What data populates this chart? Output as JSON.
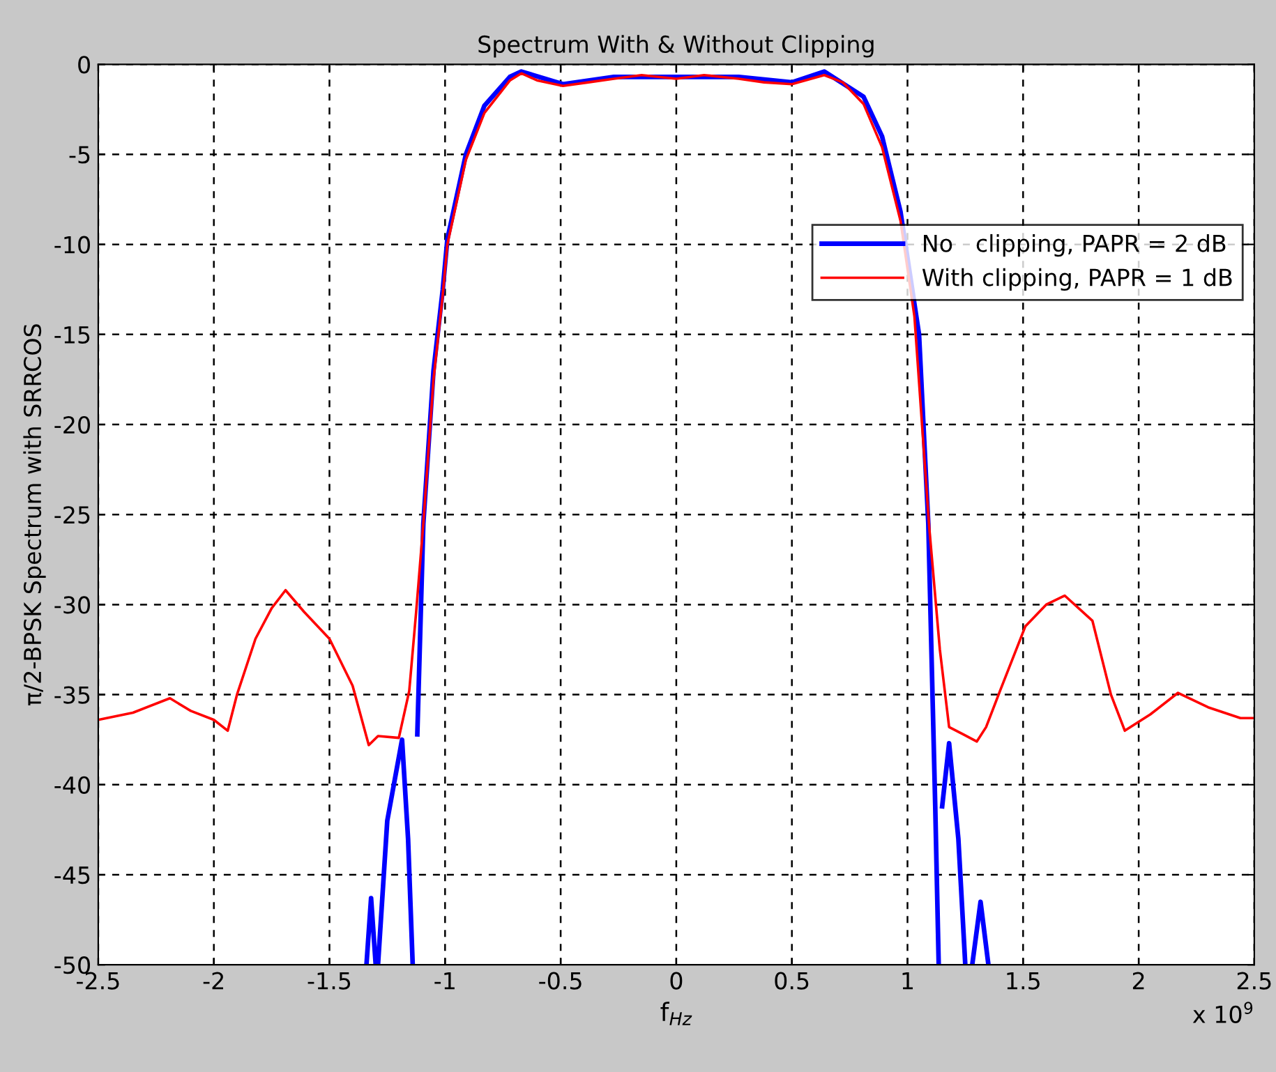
{
  "chart_data": {
    "type": "line",
    "title": "Spectrum With & Without Clipping",
    "xlabel": "f$_{Hz}$",
    "ylabel": "π/2-BPSK Spectrum with SRRCOS",
    "annotations": [
      "x 10$^{9}$"
    ],
    "xlim": [
      -2.5,
      2.5
    ],
    "xticks": [
      -2.5,
      -2,
      -1.5,
      -1,
      -0.5,
      0,
      0.5,
      1,
      1.5,
      2,
      2.5
    ],
    "ylim": [
      -50,
      0
    ],
    "yticks": [
      -50,
      -45,
      -40,
      -35,
      -30,
      -25,
      -20,
      -15,
      -10,
      -5,
      0
    ],
    "grid": true,
    "legend": "right",
    "line_style": "solid",
    "series": [
      {
        "name": "No   clipping, PAPR = 2 dB",
        "color": "#0000ff",
        "x": [
          -1.34,
          -1.32,
          -1.3,
          null,
          -1.29,
          -1.25,
          -1.186,
          -1.16,
          -1.14,
          null,
          -1.12,
          -1.094,
          -1.05,
          -1.01,
          -0.99,
          -0.91,
          -0.83,
          -0.72,
          -0.67,
          -0.49,
          -0.27,
          0.0,
          0.27,
          0.5,
          0.64,
          0.81,
          0.89,
          0.97,
          1.05,
          1.09,
          1.12,
          1.135,
          null,
          1.15,
          1.18,
          1.22,
          1.25,
          null,
          1.28,
          1.316,
          1.35
        ],
        "values": [
          -50,
          -46.3,
          -50,
          null,
          -50,
          -42,
          -37.5,
          -43,
          -50,
          null,
          -37.2,
          -25.5,
          -17,
          -12.5,
          -9.7,
          -5,
          -2.3,
          -0.7,
          -0.4,
          -1.1,
          -0.7,
          -0.7,
          -0.7,
          -1.0,
          -0.4,
          -1.8,
          -4.0,
          -8.2,
          -15,
          -25.5,
          -41.2,
          -50,
          null,
          -41.2,
          -37.7,
          -43,
          -50,
          null,
          -50,
          -46.5,
          -50
        ]
      },
      {
        "name": "With clipping, PAPR = 1 dB",
        "color": "#ff0000",
        "x": [
          -2.5,
          -2.35,
          -2.19,
          -2.1,
          -2.0,
          -1.94,
          -1.9,
          -1.82,
          -1.75,
          -1.69,
          -1.61,
          -1.5,
          -1.4,
          -1.33,
          -1.29,
          -1.2,
          -1.155,
          -1.125,
          -1.094,
          -1.05,
          -1.01,
          -0.99,
          -0.91,
          -0.83,
          -0.72,
          -0.67,
          -0.6,
          -0.49,
          -0.38,
          -0.27,
          -0.15,
          0.0,
          0.12,
          0.27,
          0.38,
          0.5,
          0.64,
          0.72,
          0.81,
          0.89,
          0.97,
          1.03,
          1.094,
          1.14,
          1.18,
          1.24,
          1.3,
          1.34,
          1.4,
          1.51,
          1.6,
          1.68,
          1.8,
          1.88,
          1.94,
          2.05,
          2.17,
          2.3,
          2.44,
          2.5
        ],
        "values": [
          -36.4,
          -36.0,
          -35.2,
          -35.9,
          -36.4,
          -37,
          -35,
          -31.9,
          -30.2,
          -29.2,
          -30.4,
          -31.9,
          -34.5,
          -37.8,
          -37.3,
          -37.4,
          -34.8,
          -30.4,
          -25.5,
          -17.5,
          -12.8,
          -10,
          -5.3,
          -2.7,
          -0.9,
          -0.5,
          -0.9,
          -1.2,
          -1.0,
          -0.8,
          -0.6,
          -0.8,
          -0.6,
          -0.8,
          -1.0,
          -1.1,
          -0.6,
          -1.0,
          -2.2,
          -4.6,
          -8.7,
          -14,
          -25.7,
          -32.5,
          -36.8,
          -37.2,
          -37.6,
          -36.8,
          -34.8,
          -31.2,
          -30.0,
          -29.5,
          -30.9,
          -35,
          -37,
          -36.1,
          -34.9,
          -35.7,
          -36.3,
          -36.3
        ]
      }
    ]
  }
}
